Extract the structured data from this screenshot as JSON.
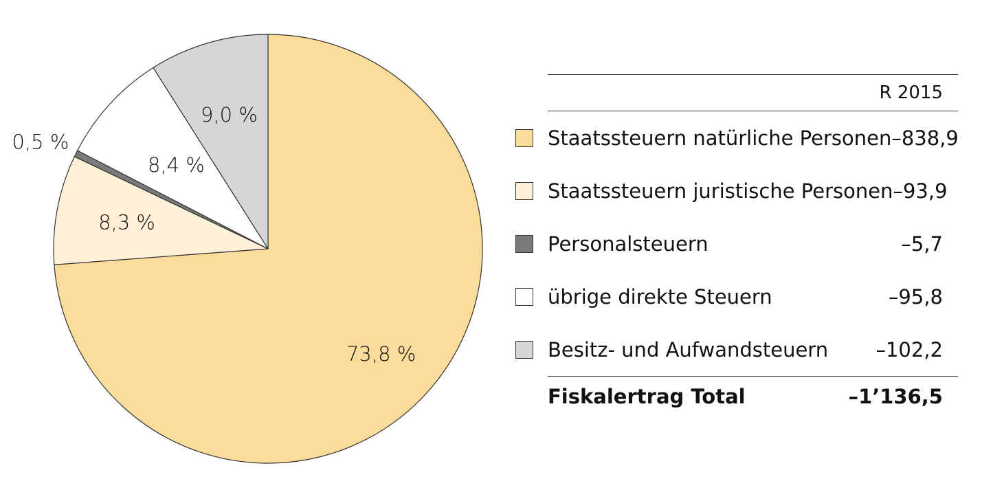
{
  "chart_data": {
    "type": "pie",
    "start_angle_deg": 0,
    "direction": "clockwise",
    "slices": [
      {
        "label": "Staatssteuern natürliche Personen",
        "value": -838.9,
        "display_value": "–838,9",
        "percent": 73.8,
        "percent_label": "73,8 %",
        "color": "#FCDC9B"
      },
      {
        "label": "Staatssteuern juristische Personen",
        "value": -93.9,
        "display_value": "–93,9",
        "percent": 8.3,
        "percent_label": "8,3 %",
        "color": "#FFF0D8"
      },
      {
        "label": "Personalsteuern",
        "value": -5.7,
        "display_value": "–5,7",
        "percent": 0.5,
        "percent_label": "0,5 %",
        "color": "#7A7A7A"
      },
      {
        "label": "übrige direkte Steuern",
        "value": -95.8,
        "display_value": "–95,8",
        "percent": 8.4,
        "percent_label": "8,4 %",
        "color": "#FFFFFF"
      },
      {
        "label": "Besitz- und Aufwandsteuern",
        "value": -102.2,
        "display_value": "–102,2",
        "percent": 9.0,
        "percent_label": "9,0 %",
        "color": "#D6D6D6"
      }
    ]
  },
  "table": {
    "column_header": "R 2015",
    "total_label": "Fiskalertrag Total",
    "total_value": "–1’136,5"
  }
}
